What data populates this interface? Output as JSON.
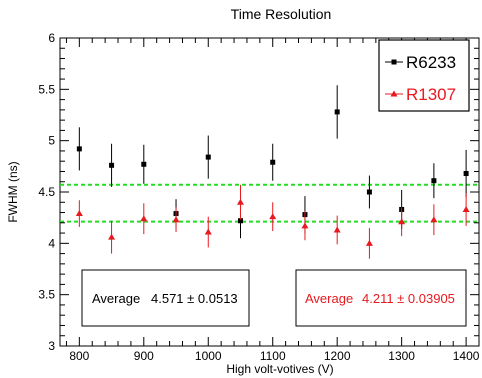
{
  "chart_data": {
    "type": "scatter",
    "title": "Time Resolution",
    "xlabel": "High volt-votives (V)",
    "ylabel": "FWHM (ns)",
    "xlim": [
      770,
      1420
    ],
    "ylim": [
      3,
      6
    ],
    "x_ticks": [
      800,
      900,
      1000,
      1100,
      1200,
      1300,
      1400
    ],
    "y_ticks": [
      3,
      3.5,
      4,
      4.5,
      5,
      5.5,
      6
    ],
    "series": [
      {
        "name": "R6233",
        "color": "#000000",
        "marker": "square",
        "x": [
          800,
          850,
          900,
          950,
          1000,
          1050,
          1100,
          1150,
          1200,
          1250,
          1300,
          1350,
          1400
        ],
        "y": [
          4.92,
          4.76,
          4.77,
          4.29,
          4.84,
          4.22,
          4.79,
          4.28,
          5.28,
          4.5,
          4.33,
          4.61,
          4.68
        ],
        "err": [
          0.21,
          0.21,
          0.19,
          0.14,
          0.21,
          0.17,
          0.18,
          0.18,
          0.26,
          0.16,
          0.19,
          0.17,
          0.23
        ]
      },
      {
        "name": "R1307",
        "color": "#e8191f",
        "marker": "triangle",
        "x": [
          800,
          850,
          900,
          950,
          1000,
          1050,
          1100,
          1150,
          1200,
          1250,
          1300,
          1350,
          1400
        ],
        "y": [
          4.29,
          4.06,
          4.24,
          4.23,
          4.11,
          4.4,
          4.26,
          4.17,
          4.13,
          4.0,
          4.21,
          4.23,
          4.33
        ],
        "err": [
          0.13,
          0.16,
          0.15,
          0.12,
          0.15,
          0.17,
          0.14,
          0.14,
          0.14,
          0.15,
          0.14,
          0.15,
          0.16
        ]
      }
    ],
    "reference_lines": [
      {
        "y": 4.571,
        "color": "#22dd22",
        "style": "dashed"
      },
      {
        "y": 4.211,
        "color": "#22dd22",
        "style": "dashed"
      }
    ],
    "annotations": [
      {
        "label": "Average",
        "value": "4.571 ± 0.0513",
        "color": "#000000"
      },
      {
        "label": "Average",
        "value": "4.211 ± 0.03905",
        "color": "#e8191f"
      }
    ],
    "legend": "top-right",
    "grid": false
  }
}
